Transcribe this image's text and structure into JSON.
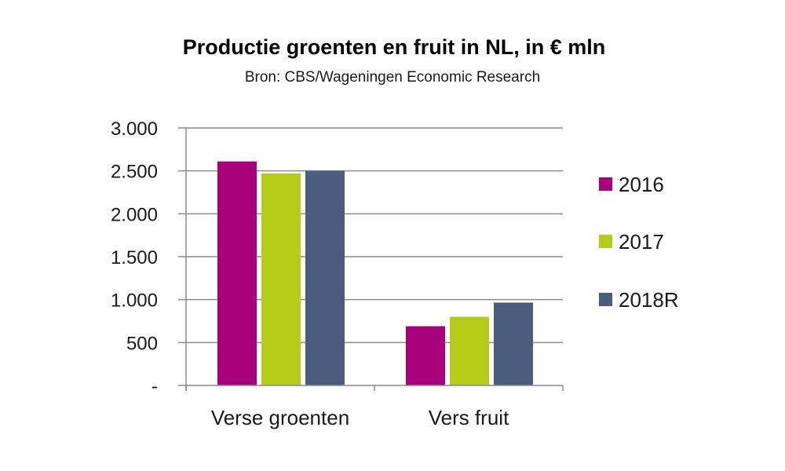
{
  "chart_data": {
    "type": "bar",
    "title": "Productie groenten en fruit in NL, in € mln",
    "subtitle": "Bron: CBS/Wageningen Economic Research",
    "categories": [
      "Verse groenten",
      "Vers fruit"
    ],
    "series": [
      {
        "name": "2016",
        "color": "#a8007c",
        "values": [
          2610,
          690
        ]
      },
      {
        "name": "2017",
        "color": "#b5cc18",
        "values": [
          2470,
          800
        ]
      },
      {
        "name": "2018R",
        "color": "#4a5d7e",
        "values": [
          2500,
          965
        ]
      }
    ],
    "ylim": [
      0,
      3000
    ],
    "yticks": [
      {
        "value": 0,
        "label": "-"
      },
      {
        "value": 500,
        "label": "500"
      },
      {
        "value": 1000,
        "label": "1.000"
      },
      {
        "value": 1500,
        "label": "1.500"
      },
      {
        "value": 2000,
        "label": "2.000"
      },
      {
        "value": 2500,
        "label": "2.500"
      },
      {
        "value": 3000,
        "label": "3.000"
      }
    ],
    "grid": true,
    "legend_position": "right",
    "gridline_color": "#8c8c8c",
    "axis_color": "#8c8c8c"
  }
}
